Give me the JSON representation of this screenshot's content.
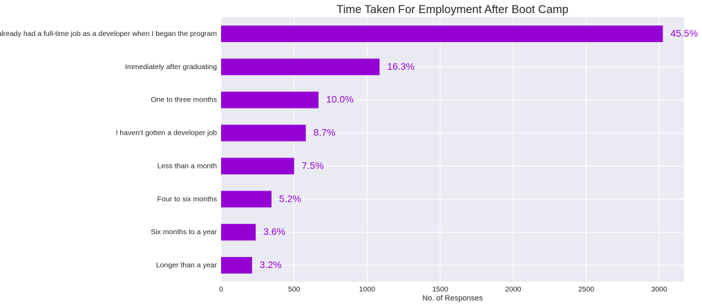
{
  "chart_data": {
    "type": "bar",
    "orientation": "horizontal",
    "title": "Time Taken For Employment After Boot Camp",
    "xlabel": "No. of Responses",
    "ylabel": "",
    "xlim": [
      0,
      3170
    ],
    "xticks": [
      0,
      500,
      1000,
      1500,
      2000,
      2500,
      3000
    ],
    "grid": true,
    "bar_color": "#9400D3",
    "label_color": "#9400D3",
    "plot_background": "#EAEAF2",
    "categories": [
      "I already had a full-time job as a developer when I began the program",
      "Immediately after graduating",
      "One to three months",
      "I haven’t gotten a developer job",
      "Less than a month",
      "Four to six months",
      "Six months to a year",
      "Longer than a year"
    ],
    "values": [
      3025,
      1085,
      667,
      580,
      500,
      345,
      237,
      212
    ],
    "percent_labels": [
      "45.5%",
      "16.3%",
      "10.0%",
      "8.7%",
      "7.5%",
      "5.2%",
      "3.6%",
      "3.2%"
    ]
  }
}
